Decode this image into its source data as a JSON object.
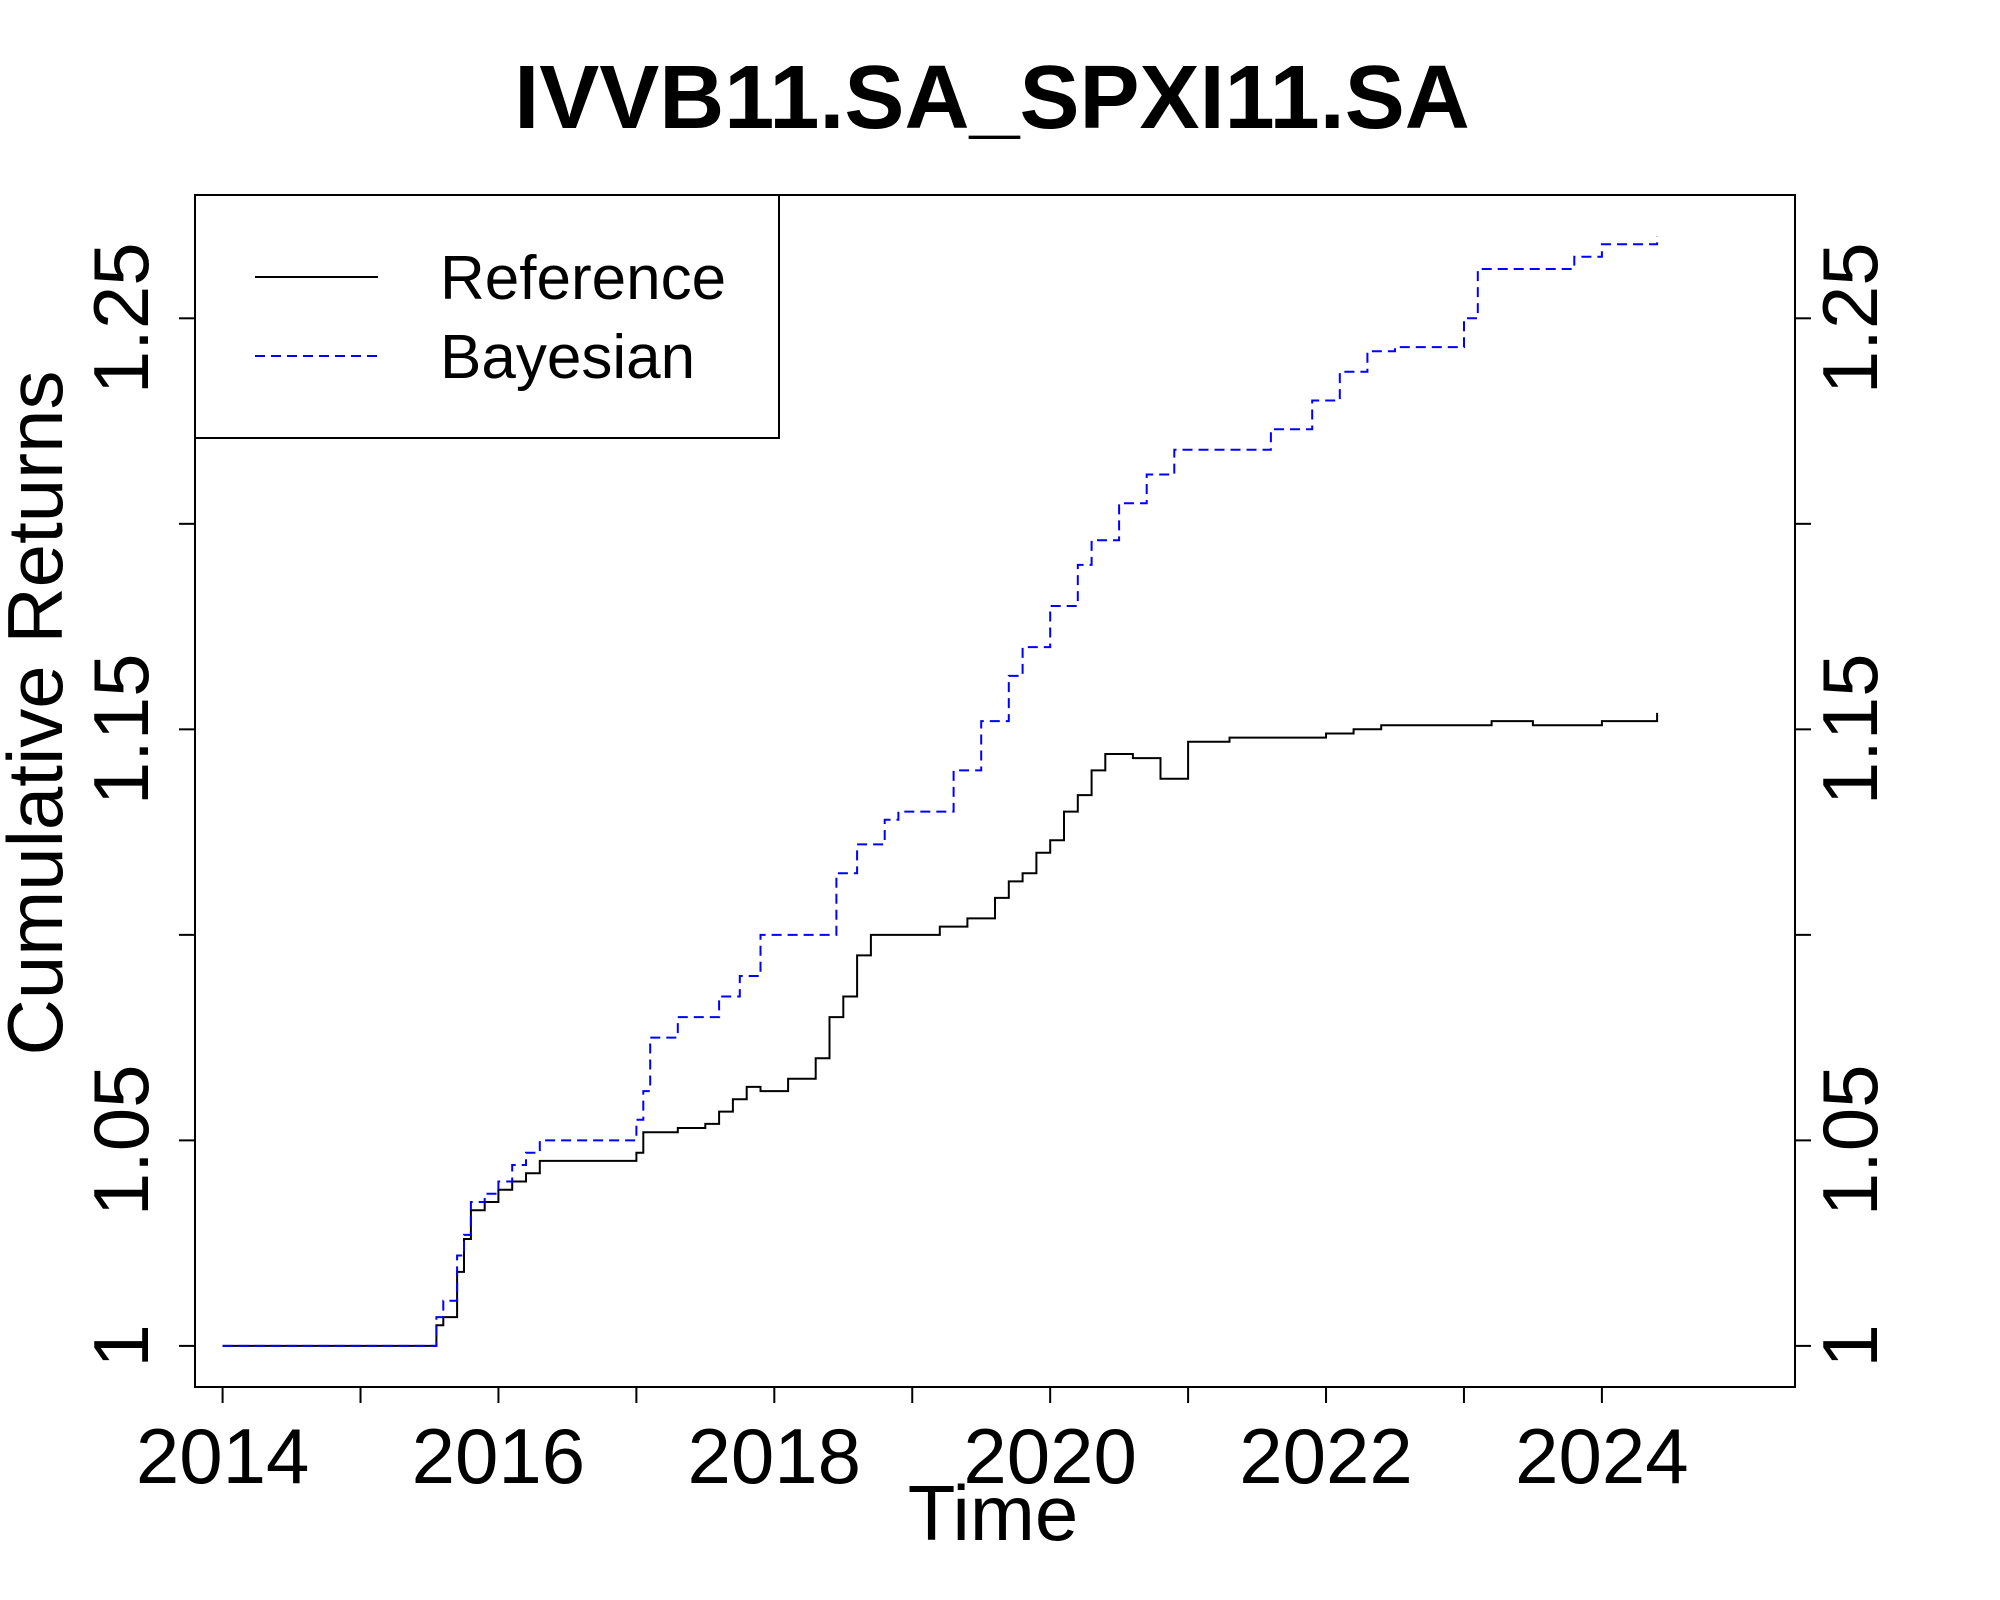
{
  "chart_data": {
    "type": "line",
    "title": "IVVB11.SA_SPXI11.SA",
    "xlabel": "Time",
    "ylabel": "Cumulative Returns",
    "xlim": [
      2013.8,
      2025.4
    ],
    "ylim": [
      0.99,
      1.28
    ],
    "x_ticks": [
      2014,
      2015,
      2016,
      2017,
      2018,
      2019,
      2020,
      2021,
      2022,
      2023,
      2024
    ],
    "x_tick_labels": [
      "2014",
      "",
      "2016",
      "",
      "2018",
      "",
      "2020",
      "",
      "2022",
      "",
      "2024"
    ],
    "y_ticks": [
      1.0,
      1.05,
      1.1,
      1.15,
      1.2,
      1.25
    ],
    "y_tick_labels": [
      "1",
      "1.05",
      "",
      "1.15",
      "",
      "1.25"
    ],
    "grid": false,
    "legend_position": "top-left",
    "colors": {
      "reference": "#000000",
      "bayesian": "#0000ff"
    },
    "series": [
      {
        "name": "Reference",
        "style": "solid",
        "color": "#000000",
        "x": [
          2014.0,
          2015.5,
          2015.55,
          2015.6,
          2015.7,
          2015.75,
          2015.8,
          2015.9,
          2016.0,
          2016.1,
          2016.2,
          2016.3,
          2016.5,
          2016.9,
          2017.0,
          2017.05,
          2017.3,
          2017.5,
          2017.6,
          2017.7,
          2017.8,
          2017.9,
          2018.0,
          2018.1,
          2018.3,
          2018.4,
          2018.5,
          2018.6,
          2018.7,
          2018.9,
          2019.0,
          2019.2,
          2019.4,
          2019.6,
          2019.7,
          2019.8,
          2019.9,
          2020.0,
          2020.1,
          2020.2,
          2020.3,
          2020.4,
          2020.6,
          2020.8,
          2021.0,
          2021.3,
          2021.6,
          2022.0,
          2022.2,
          2022.4,
          2022.7,
          2023.0,
          2023.2,
          2023.5,
          2024.0,
          2024.4
        ],
        "y": [
          1.0,
          1.0,
          1.005,
          1.007,
          1.018,
          1.026,
          1.033,
          1.035,
          1.038,
          1.04,
          1.042,
          1.045,
          1.045,
          1.045,
          1.047,
          1.052,
          1.053,
          1.054,
          1.057,
          1.06,
          1.063,
          1.062,
          1.062,
          1.065,
          1.07,
          1.08,
          1.085,
          1.095,
          1.1,
          1.1,
          1.1,
          1.102,
          1.104,
          1.109,
          1.113,
          1.115,
          1.12,
          1.123,
          1.13,
          1.134,
          1.14,
          1.144,
          1.143,
          1.138,
          1.147,
          1.148,
          1.148,
          1.149,
          1.15,
          1.151,
          1.151,
          1.151,
          1.152,
          1.151,
          1.152,
          1.154
        ]
      },
      {
        "name": "Bayesian",
        "style": "dashed",
        "color": "#0000ff",
        "x": [
          2014.0,
          2015.5,
          2015.55,
          2015.6,
          2015.7,
          2015.75,
          2015.8,
          2015.9,
          2016.0,
          2016.1,
          2016.2,
          2016.3,
          2016.5,
          2016.9,
          2017.0,
          2017.05,
          2017.1,
          2017.3,
          2017.5,
          2017.6,
          2017.75,
          2017.9,
          2018.0,
          2018.1,
          2018.3,
          2018.45,
          2018.6,
          2018.8,
          2018.9,
          2019.1,
          2019.3,
          2019.5,
          2019.7,
          2019.8,
          2020.0,
          2020.2,
          2020.3,
          2020.5,
          2020.7,
          2020.9,
          2021.1,
          2021.4,
          2021.6,
          2021.9,
          2022.1,
          2022.3,
          2022.5,
          2022.8,
          2023.0,
          2023.1,
          2023.3,
          2023.6,
          2023.8,
          2024.0,
          2024.2,
          2024.4
        ],
        "y": [
          1.0,
          1.0,
          1.007,
          1.011,
          1.022,
          1.027,
          1.035,
          1.037,
          1.04,
          1.044,
          1.047,
          1.05,
          1.05,
          1.05,
          1.055,
          1.062,
          1.075,
          1.08,
          1.08,
          1.085,
          1.09,
          1.1,
          1.1,
          1.1,
          1.1,
          1.115,
          1.122,
          1.128,
          1.13,
          1.13,
          1.14,
          1.152,
          1.163,
          1.17,
          1.18,
          1.19,
          1.196,
          1.205,
          1.212,
          1.218,
          1.218,
          1.218,
          1.223,
          1.23,
          1.237,
          1.242,
          1.243,
          1.243,
          1.25,
          1.262,
          1.262,
          1.262,
          1.265,
          1.268,
          1.268,
          1.27
        ]
      }
    ]
  }
}
